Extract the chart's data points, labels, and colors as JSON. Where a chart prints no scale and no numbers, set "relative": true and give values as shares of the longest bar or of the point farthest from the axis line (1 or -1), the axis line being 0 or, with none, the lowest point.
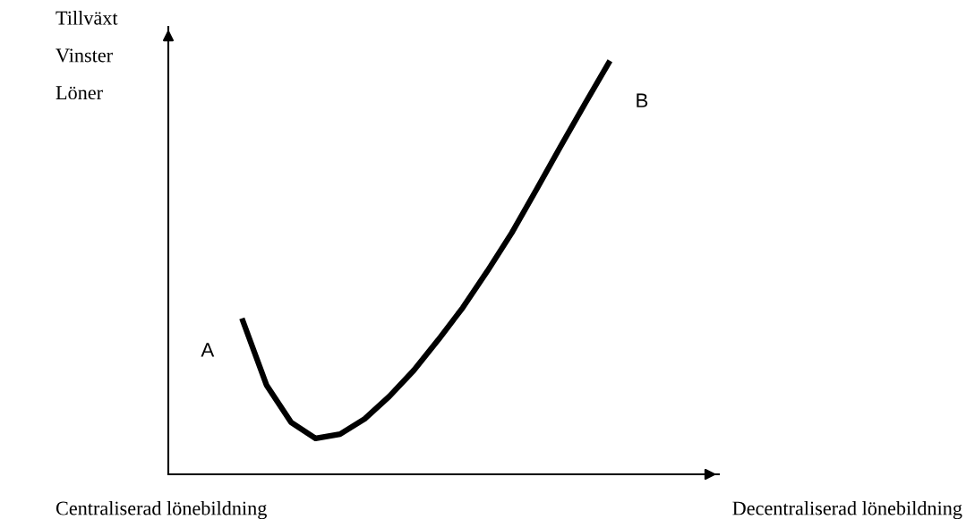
{
  "chart_data": {
    "type": "line",
    "relative": true,
    "ylabel": "Tillväxt\nVinster\nLöner",
    "categories": [
      null,
      null,
      null,
      null,
      null,
      null,
      null,
      null,
      null,
      null,
      null,
      null,
      null,
      null,
      null,
      null,
      null,
      null,
      null,
      null,
      null,
      null,
      null
    ],
    "series": [
      {
        "color": "#000000",
        "values": [
          null,
          null,
          null,
          0.377,
          0.216,
          0.126,
          0.087,
          0.097,
          0.134,
          0.188,
          0.251,
          0.325,
          0.403,
          0.491,
          0.584,
          0.688,
          0.794,
          0.898,
          1.0,
          null,
          null,
          null,
          null
        ]
      }
    ],
    "annotations": [
      "A",
      "B",
      "Centraliserad lönebildning",
      "Decentraliserad lönebildning"
    ],
    "marker": "none",
    "line_style": "solid",
    "grid": false,
    "legend": false
  }
}
